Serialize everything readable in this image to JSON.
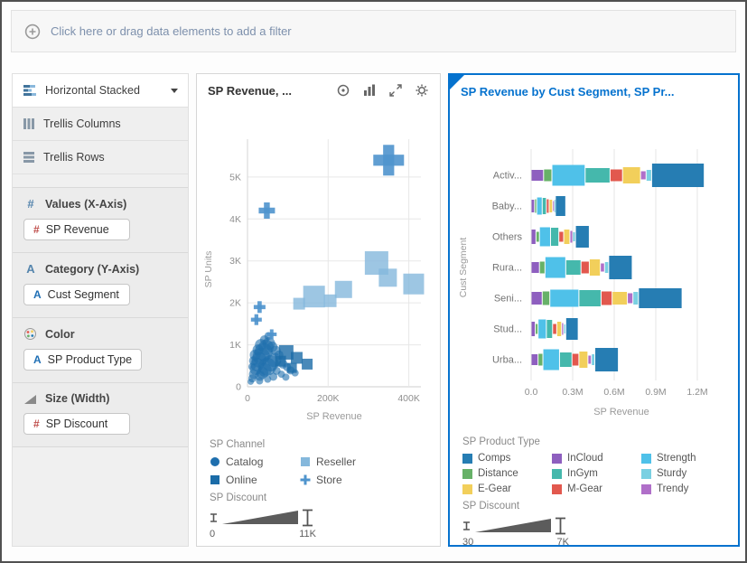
{
  "filter_bar": {
    "prompt": "Click here or drag data elements to add a filter"
  },
  "sidebar": {
    "chart_type": {
      "label": "Horizontal Stacked"
    },
    "layout_options": [
      {
        "label": "Trellis Columns"
      },
      {
        "label": "Trellis Rows"
      }
    ],
    "sections": [
      {
        "title": "Values (X-Axis)",
        "glyph": "#",
        "chips": [
          {
            "glyph": "#",
            "label": "SP Revenue"
          }
        ]
      },
      {
        "title": "Category (Y-Axis)",
        "glyph": "A",
        "chips": [
          {
            "glyph": "A",
            "label": "Cust Segment"
          }
        ]
      },
      {
        "title": "Color",
        "icon": "palette-icon",
        "chips": [
          {
            "glyph": "A",
            "label": "SP Product Type"
          }
        ]
      },
      {
        "title": "Size (Width)",
        "icon": "size-ramp-icon",
        "chips": [
          {
            "glyph": "#",
            "label": "SP Discount"
          }
        ]
      }
    ]
  },
  "scatter_panel": {
    "title": "SP Revenue, ...",
    "header_icons": [
      "target-icon",
      "bar-chart-icon",
      "maximize-icon",
      "gear-icon"
    ],
    "channel_legend": {
      "title": "SP Channel",
      "items": [
        {
          "label": "Catalog",
          "shape": "circle",
          "color": "#1f6fae"
        },
        {
          "label": "Reseller",
          "shape": "square",
          "color": "#85b8dc"
        },
        {
          "label": "Online",
          "shape": "square",
          "color": "#1b6ca8"
        },
        {
          "label": "Store",
          "shape": "plus",
          "color": "#4f94cd"
        }
      ]
    },
    "size_legend": {
      "title": "SP Discount",
      "min_label": "0",
      "max_label": "11K"
    }
  },
  "stacked_panel": {
    "title": "SP Revenue by Cust Segment, SP Pr...",
    "product_legend": {
      "title": "SP Product Type",
      "items": [
        {
          "label": "Comps",
          "color": "#267db3"
        },
        {
          "label": "InCloud",
          "color": "#8e5fbf"
        },
        {
          "label": "Strength",
          "color": "#4fc1e9"
        },
        {
          "label": "Distance",
          "color": "#67b168"
        },
        {
          "label": "InGym",
          "color": "#45b8ac"
        },
        {
          "label": "Sturdy",
          "color": "#7ad0e2"
        },
        {
          "label": "E-Gear",
          "color": "#f2cf5b"
        },
        {
          "label": "M-Gear",
          "color": "#e2584e"
        },
        {
          "label": "Trendy",
          "color": "#b06fc9"
        }
      ]
    },
    "size_legend": {
      "title": "SP Discount",
      "min_label": "30",
      "max_label": "7K"
    }
  },
  "chart_data": [
    {
      "type": "scatter",
      "title": "SP Revenue, ...",
      "xlabel": "SP Revenue",
      "ylabel": "SP Units",
      "xlim": [
        0,
        430000
      ],
      "ylim": [
        0,
        5600
      ],
      "xticks": [
        {
          "value": 0,
          "label": "0"
        },
        {
          "value": 200000,
          "label": "200K"
        },
        {
          "value": 400000,
          "label": "400K"
        }
      ],
      "yticks": [
        {
          "value": 0,
          "label": "0"
        },
        {
          "value": 1000,
          "label": "1K"
        },
        {
          "value": 2000,
          "label": "2K"
        },
        {
          "value": 3000,
          "label": "3K"
        },
        {
          "value": 4000,
          "label": "4K"
        },
        {
          "value": 5000,
          "label": "5K"
        }
      ],
      "points": [
        {
          "channel": "Catalog",
          "x": 8000,
          "y": 120,
          "size": 7
        },
        {
          "channel": "Catalog",
          "x": 12000,
          "y": 200,
          "size": 9
        },
        {
          "channel": "Catalog",
          "x": 16000,
          "y": 300,
          "size": 11
        },
        {
          "channel": "Catalog",
          "x": 20000,
          "y": 420,
          "size": 13
        },
        {
          "channel": "Catalog",
          "x": 24000,
          "y": 530,
          "size": 15
        },
        {
          "channel": "Catalog",
          "x": 29000,
          "y": 640,
          "size": 17
        },
        {
          "channel": "Catalog",
          "x": 34000,
          "y": 730,
          "size": 19
        },
        {
          "channel": "Catalog",
          "x": 40000,
          "y": 830,
          "size": 20
        },
        {
          "channel": "Catalog",
          "x": 46000,
          "y": 940,
          "size": 17
        },
        {
          "channel": "Catalog",
          "x": 53000,
          "y": 1030,
          "size": 14
        },
        {
          "channel": "Catalog",
          "x": 61000,
          "y": 950,
          "size": 12
        },
        {
          "channel": "Catalog",
          "x": 70000,
          "y": 860,
          "size": 11
        },
        {
          "channel": "Catalog",
          "x": 78000,
          "y": 760,
          "size": 10
        },
        {
          "channel": "Catalog",
          "x": 66000,
          "y": 640,
          "size": 16
        },
        {
          "channel": "Catalog",
          "x": 57000,
          "y": 560,
          "size": 18
        },
        {
          "channel": "Catalog",
          "x": 49000,
          "y": 480,
          "size": 20
        },
        {
          "channel": "Catalog",
          "x": 43000,
          "y": 400,
          "size": 15
        },
        {
          "channel": "Catalog",
          "x": 37000,
          "y": 330,
          "size": 13
        },
        {
          "channel": "Catalog",
          "x": 31000,
          "y": 260,
          "size": 11
        },
        {
          "channel": "Catalog",
          "x": 88000,
          "y": 540,
          "size": 10
        },
        {
          "channel": "Catalog",
          "x": 98000,
          "y": 470,
          "size": 9
        },
        {
          "channel": "Catalog",
          "x": 107000,
          "y": 390,
          "size": 9
        },
        {
          "channel": "Catalog",
          "x": 118000,
          "y": 330,
          "size": 8
        },
        {
          "channel": "Catalog",
          "x": 26000,
          "y": 880,
          "size": 12
        },
        {
          "channel": "Catalog",
          "x": 33000,
          "y": 1000,
          "size": 13
        },
        {
          "channel": "Catalog",
          "x": 42000,
          "y": 1120,
          "size": 10
        },
        {
          "channel": "Catalog",
          "x": 52000,
          "y": 1210,
          "size": 9
        },
        {
          "channel": "Catalog",
          "x": 15000,
          "y": 620,
          "size": 10
        },
        {
          "channel": "Catalog",
          "x": 11000,
          "y": 480,
          "size": 8
        },
        {
          "channel": "Catalog",
          "x": 19000,
          "y": 760,
          "size": 12
        },
        {
          "channel": "Catalog",
          "x": 72000,
          "y": 380,
          "size": 9
        },
        {
          "channel": "Catalog",
          "x": 84000,
          "y": 300,
          "size": 8
        },
        {
          "channel": "Catalog",
          "x": 95000,
          "y": 230,
          "size": 8
        },
        {
          "channel": "Catalog",
          "x": 64000,
          "y": 240,
          "size": 9
        },
        {
          "channel": "Catalog",
          "x": 50000,
          "y": 180,
          "size": 8
        },
        {
          "channel": "Catalog",
          "x": 30000,
          "y": 140,
          "size": 8
        },
        {
          "channel": "Online",
          "x": 96000,
          "y": 820,
          "size": 16
        },
        {
          "channel": "Online",
          "x": 122000,
          "y": 690,
          "size": 13
        },
        {
          "channel": "Online",
          "x": 148000,
          "y": 540,
          "size": 12
        },
        {
          "channel": "Online",
          "x": 82000,
          "y": 610,
          "size": 12
        },
        {
          "channel": "Online",
          "x": 110000,
          "y": 450,
          "size": 11
        },
        {
          "channel": "Reseller",
          "x": 320000,
          "y": 2950,
          "size": 26
        },
        {
          "channel": "Reseller",
          "x": 348000,
          "y": 2600,
          "size": 20
        },
        {
          "channel": "Reseller",
          "x": 412000,
          "y": 2450,
          "size": 23
        },
        {
          "channel": "Reseller",
          "x": 238000,
          "y": 2320,
          "size": 19
        },
        {
          "channel": "Reseller",
          "x": 165000,
          "y": 2150,
          "size": 24
        },
        {
          "channel": "Reseller",
          "x": 205000,
          "y": 2050,
          "size": 14
        },
        {
          "channel": "Reseller",
          "x": 128000,
          "y": 1980,
          "size": 13
        },
        {
          "channel": "Store",
          "x": 350000,
          "y": 5400,
          "size": 34
        },
        {
          "channel": "Store",
          "x": 48000,
          "y": 4200,
          "size": 18
        },
        {
          "channel": "Store",
          "x": 30000,
          "y": 1900,
          "size": 13
        },
        {
          "channel": "Store",
          "x": 22000,
          "y": 1600,
          "size": 12
        },
        {
          "channel": "Store",
          "x": 60000,
          "y": 1250,
          "size": 11
        }
      ]
    },
    {
      "type": "bar",
      "orientation": "horizontal",
      "stacked": true,
      "title": "SP Revenue by Cust Segment, SP Pr...",
      "xlabel": "SP Revenue",
      "ylabel": "Cust Segment",
      "categories": [
        "Activ...",
        "Baby...",
        "Others",
        "Rura...",
        "Seni...",
        "Stud...",
        "Urba..."
      ],
      "xlim": [
        0,
        1350000
      ],
      "xticks": [
        {
          "value": 0,
          "label": "0.0"
        },
        {
          "value": 300000,
          "label": "0.3M"
        },
        {
          "value": 600000,
          "label": "0.6M"
        },
        {
          "value": 900000,
          "label": "0.9M"
        },
        {
          "value": 1200000,
          "label": "1.2M"
        }
      ],
      "series": [
        {
          "name": "InCloud",
          "color": "#8e5fbf",
          "values": [
            90000,
            25000,
            35000,
            60000,
            80000,
            30000,
            50000
          ]
        },
        {
          "name": "Distance",
          "color": "#67b168",
          "values": [
            60000,
            15000,
            25000,
            40000,
            55000,
            20000,
            35000
          ]
        },
        {
          "name": "Strength",
          "color": "#4fc1e9",
          "values": [
            240000,
            40000,
            80000,
            150000,
            210000,
            60000,
            120000
          ]
        },
        {
          "name": "InGym",
          "color": "#45b8ac",
          "values": [
            180000,
            30000,
            60000,
            110000,
            160000,
            45000,
            90000
          ]
        },
        {
          "name": "M-Gear",
          "color": "#e2584e",
          "values": [
            90000,
            20000,
            35000,
            60000,
            80000,
            30000,
            50000
          ]
        },
        {
          "name": "E-Gear",
          "color": "#f2cf5b",
          "values": [
            130000,
            25000,
            45000,
            80000,
            110000,
            35000,
            65000
          ]
        },
        {
          "name": "Trendy",
          "color": "#b06fc9",
          "values": [
            40000,
            10000,
            20000,
            30000,
            40000,
            15000,
            25000
          ]
        },
        {
          "name": "Sturdy",
          "color": "#7ad0e2",
          "values": [
            40000,
            10000,
            20000,
            30000,
            40000,
            15000,
            25000
          ]
        },
        {
          "name": "Comps",
          "color": "#267db3",
          "values": [
            380000,
            75000,
            100000,
            170000,
            315000,
            90000,
            170000
          ]
        }
      ]
    }
  ]
}
